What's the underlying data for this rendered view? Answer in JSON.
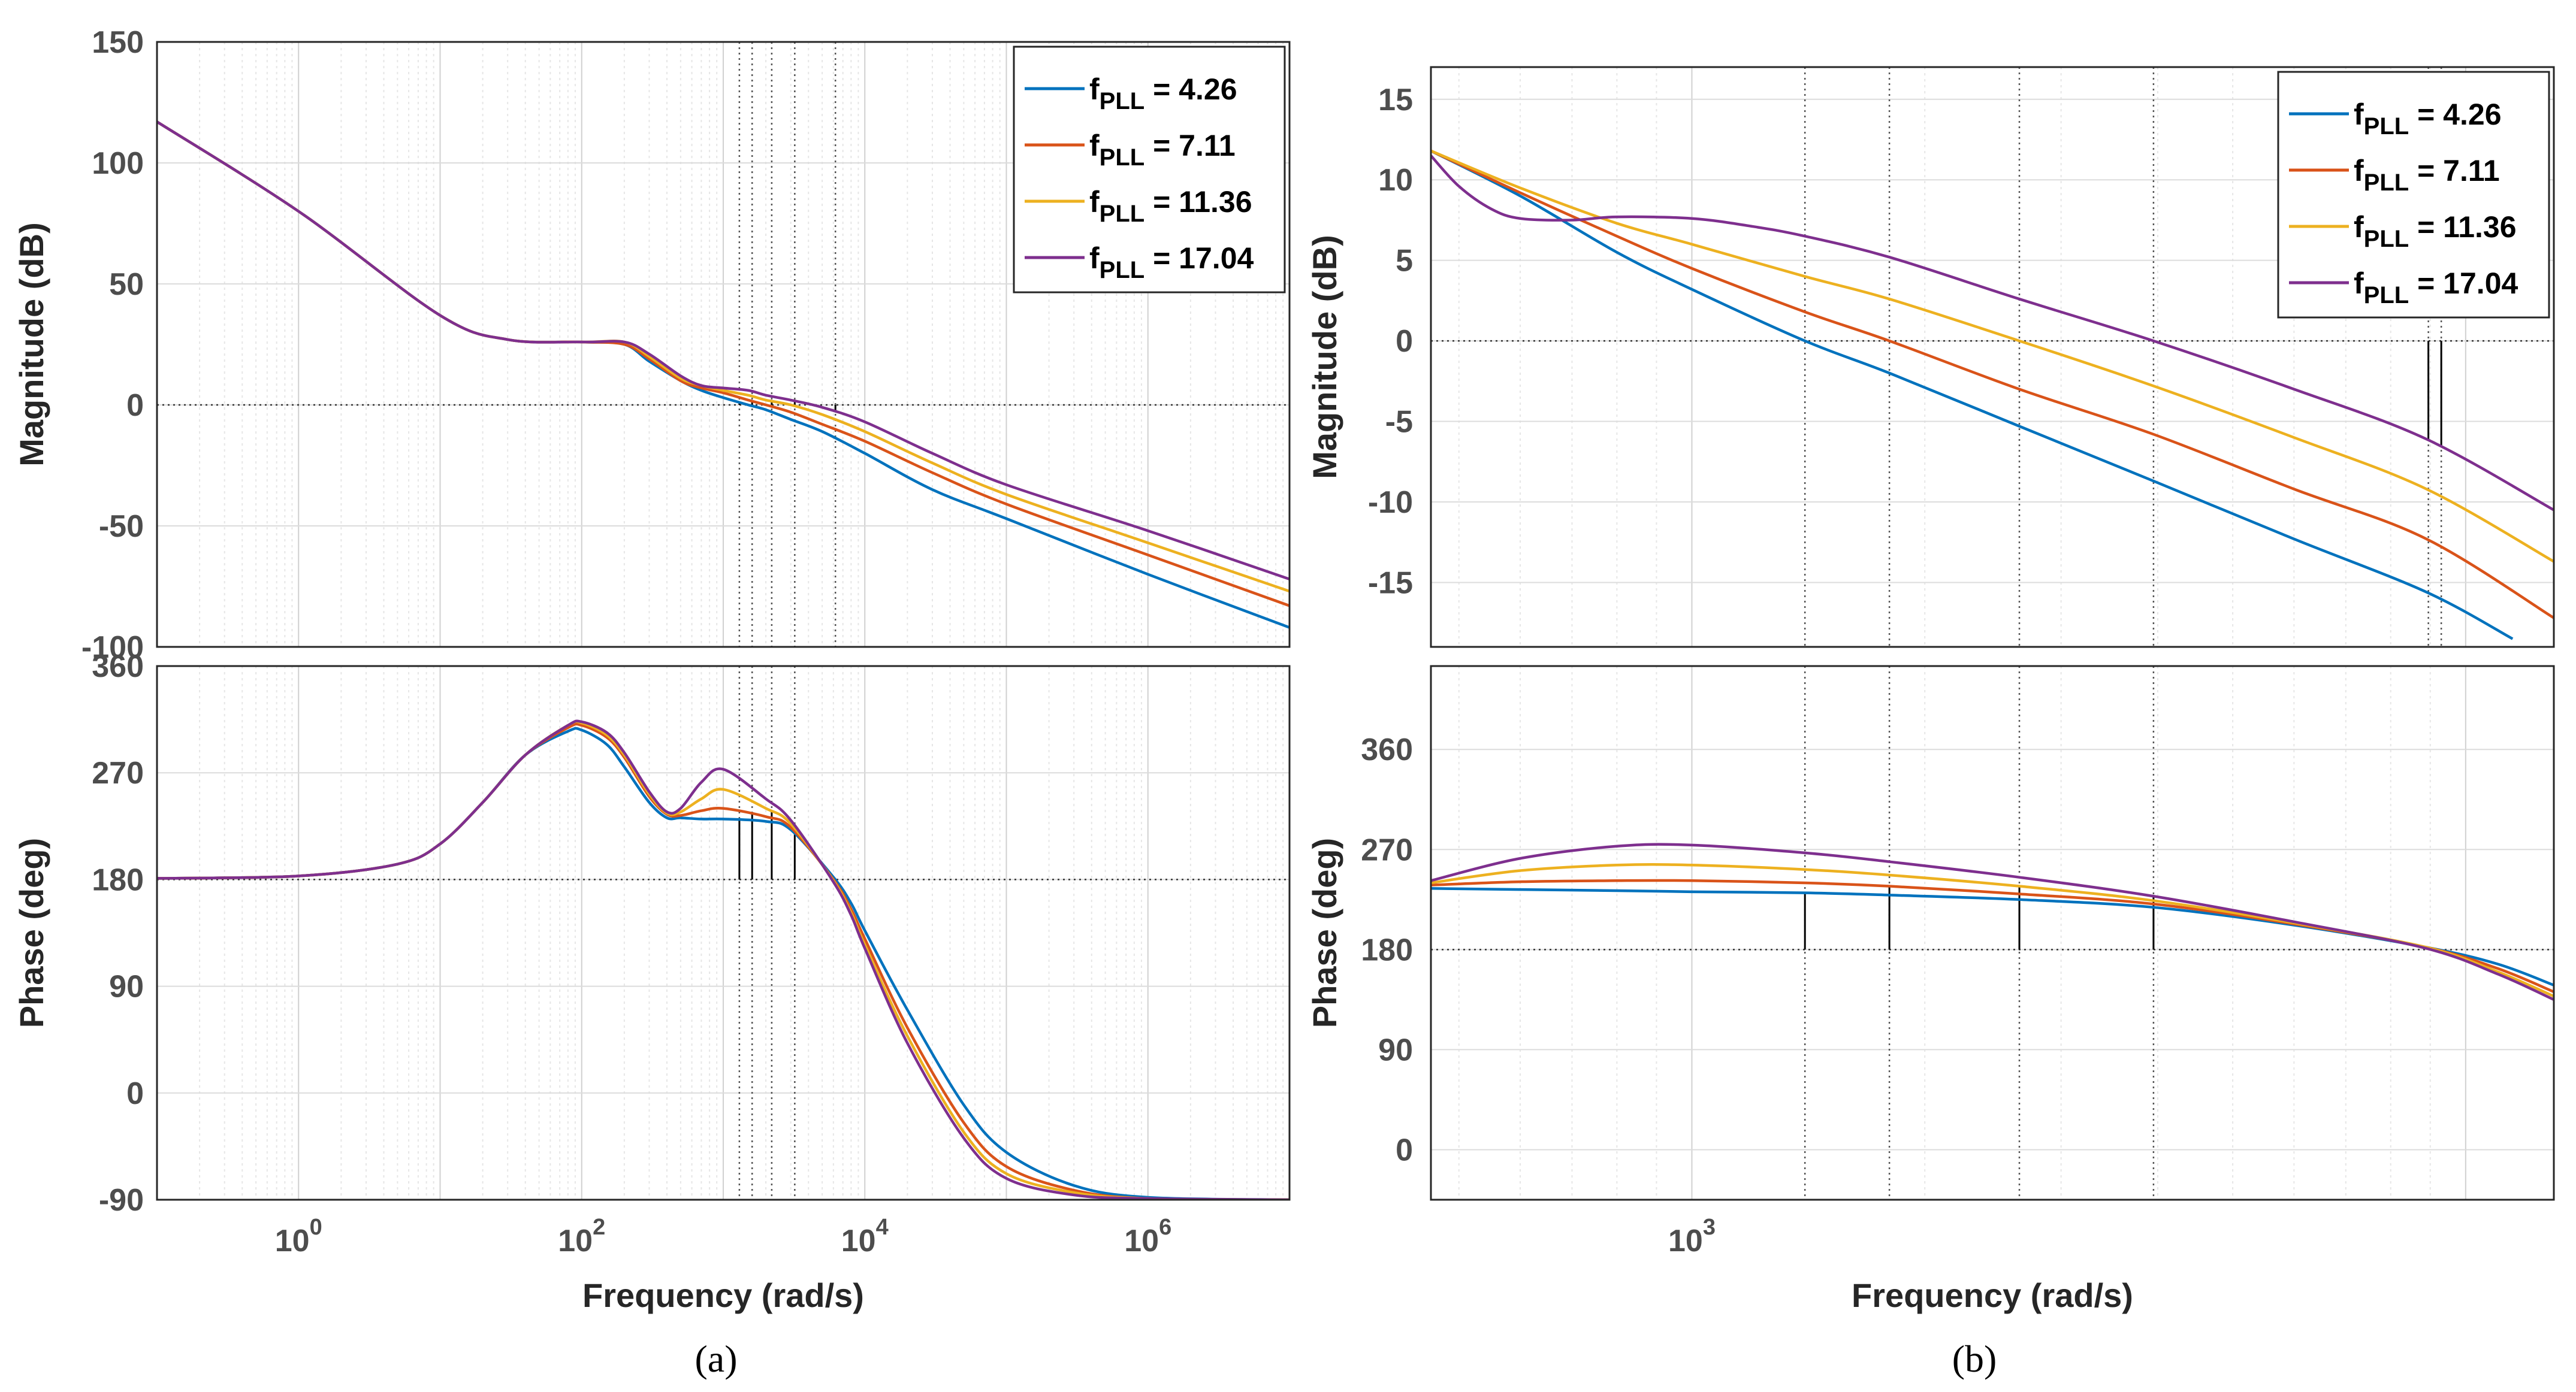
{
  "colors": {
    "series": [
      "#0072BD",
      "#D95319",
      "#EDB120",
      "#7E2F8E"
    ],
    "grid": "#dcdcdc",
    "axis": "#262626",
    "marker": "#000000"
  },
  "legend": {
    "prefix": "f",
    "subscript": "PLL",
    "equals": "=",
    "values": [
      "4.26",
      "7.11",
      "11.36",
      "17.04"
    ]
  },
  "chart_data": [
    {
      "id": "a-magnitude",
      "type": "line",
      "xscale": "log",
      "xlim": [
        0.1,
        10000000
      ],
      "ylim": [
        -100,
        150
      ],
      "yticks": [
        "150",
        "100",
        "50",
        "0",
        "-50",
        "-100"
      ],
      "ylabel": "Magnitude (dB)",
      "reference_line": 0,
      "crossover_x": [
        1300,
        1600,
        2200,
        3200,
        6200
      ],
      "series": [
        {
          "name": "fPLL = 4.26",
          "x": [
            0.1,
            1,
            10,
            30,
            100,
            200,
            300,
            500,
            700,
            1000,
            1500,
            2000,
            3000,
            5000,
            10000,
            30000,
            100000,
            1000000,
            10000000
          ],
          "y": [
            117,
            80,
            37,
            27,
            26,
            25,
            18,
            10,
            6,
            3,
            0,
            -2,
            -6,
            -11,
            -20,
            -35,
            -47,
            -70,
            -92
          ]
        },
        {
          "name": "fPLL = 7.11",
          "x": [
            0.1,
            1,
            10,
            30,
            100,
            200,
            300,
            500,
            700,
            1000,
            1500,
            2000,
            3000,
            5000,
            10000,
            30000,
            100000,
            1000000,
            10000000
          ],
          "y": [
            117,
            80,
            37,
            27,
            26,
            25,
            19,
            10,
            7,
            5,
            2,
            0,
            -3,
            -8,
            -15,
            -28,
            -41,
            -62,
            -83
          ]
        },
        {
          "name": "fPLL = 11.36",
          "x": [
            0.1,
            1,
            10,
            30,
            100,
            200,
            300,
            500,
            700,
            1000,
            1500,
            2000,
            3000,
            5000,
            10000,
            30000,
            100000,
            1000000,
            10000000
          ],
          "y": [
            117,
            80,
            37,
            27,
            26,
            26,
            20,
            11,
            8,
            6,
            4,
            2,
            0,
            -4,
            -11,
            -24,
            -37,
            -57,
            -77
          ]
        },
        {
          "name": "fPLL = 17.04",
          "x": [
            0.1,
            1,
            10,
            30,
            100,
            200,
            300,
            500,
            700,
            1000,
            1500,
            2000,
            3000,
            5000,
            10000,
            30000,
            100000,
            1000000,
            10000000
          ],
          "y": [
            117,
            80,
            37,
            27,
            26,
            26,
            21,
            12,
            8,
            7,
            6,
            4,
            2,
            -1,
            -7,
            -20,
            -33,
            -52,
            -72
          ]
        }
      ]
    },
    {
      "id": "a-phase",
      "type": "line",
      "xscale": "log",
      "xlim": [
        0.1,
        10000000
      ],
      "ylim": [
        -90,
        360
      ],
      "yticks": [
        "360",
        "270",
        "180",
        "90",
        "0",
        "-90"
      ],
      "xticks": [
        {
          "base": "10",
          "exp": "0",
          "value": 1
        },
        {
          "base": "10",
          "exp": "2",
          "value": 100
        },
        {
          "base": "10",
          "exp": "4",
          "value": 10000
        },
        {
          "base": "10",
          "exp": "6",
          "value": 1000000
        }
      ],
      "ylabel": "Phase (deg)",
      "xlabel": "Frequency  (rad/s)",
      "reference_line": 180,
      "crossover_x": [
        1300,
        1600,
        2200,
        3200
      ],
      "series": [
        {
          "name": "fPLL = 4.26",
          "x": [
            0.1,
            1,
            5,
            10,
            20,
            40,
            80,
            100,
            150,
            200,
            300,
            400,
            500,
            700,
            1000,
            2000,
            3000,
            6000,
            8000,
            10000,
            20000,
            50000,
            100000,
            300000,
            1000000,
            10000000
          ],
          "y": [
            181,
            183,
            193,
            210,
            245,
            285,
            305,
            306,
            294,
            275,
            245,
            232,
            232,
            231,
            231,
            229,
            222,
            182,
            160,
            137,
            70,
            -10,
            -50,
            -78,
            -88,
            -90
          ]
        },
        {
          "name": "fPLL = 7.11",
          "x": [
            0.1,
            1,
            5,
            10,
            20,
            40,
            80,
            100,
            150,
            200,
            300,
            400,
            500,
            700,
            1000,
            2000,
            3000,
            6000,
            8000,
            10000,
            20000,
            50000,
            100000,
            300000,
            1000000,
            10000000
          ],
          "y": [
            181,
            183,
            193,
            210,
            245,
            285,
            308,
            310,
            300,
            283,
            250,
            235,
            234,
            238,
            240,
            233,
            224,
            180,
            155,
            130,
            55,
            -25,
            -62,
            -82,
            -89,
            -90
          ]
        },
        {
          "name": "fPLL = 11.36",
          "x": [
            0.1,
            1,
            5,
            10,
            20,
            40,
            80,
            100,
            150,
            200,
            300,
            400,
            500,
            700,
            1000,
            2000,
            3000,
            6000,
            8000,
            10000,
            20000,
            50000,
            100000,
            300000,
            1000000,
            10000000
          ],
          "y": [
            181,
            183,
            193,
            210,
            245,
            285,
            310,
            312,
            302,
            285,
            252,
            236,
            237,
            248,
            256,
            240,
            227,
            179,
            152,
            125,
            48,
            -33,
            -68,
            -84,
            -89,
            -90
          ]
        },
        {
          "name": "fPLL = 17.04",
          "x": [
            0.1,
            1,
            5,
            10,
            20,
            40,
            80,
            100,
            150,
            200,
            300,
            400,
            500,
            700,
            1000,
            2000,
            3000,
            6000,
            8000,
            10000,
            20000,
            50000,
            100000,
            300000,
            1000000,
            10000000
          ],
          "y": [
            181,
            183,
            193,
            210,
            245,
            285,
            310,
            313,
            304,
            287,
            254,
            237,
            240,
            262,
            273,
            248,
            230,
            178,
            150,
            122,
            42,
            -38,
            -72,
            -86,
            -89,
            -90
          ]
        }
      ]
    },
    {
      "id": "b-magnitude",
      "type": "line",
      "xscale": "log",
      "xlim": [
        460,
        13000
      ],
      "ylim": [
        -19,
        17
      ],
      "yticks": [
        "15",
        "10",
        "5",
        "0",
        "-5",
        "-10",
        "-15"
      ],
      "ylabel": "Magnitude (dB)",
      "reference_line": 0,
      "crossover_x": [
        1400,
        1800,
        2650,
        3950,
        8950,
        9300
      ],
      "series": [
        {
          "name": "fPLL = 4.26",
          "x": [
            460,
            600,
            800,
            1000,
            1400,
            1800,
            2650,
            3950,
            6000,
            8900,
            11500
          ],
          "y": [
            11.8,
            9,
            5.5,
            3.2,
            0,
            -2,
            -5.3,
            -8.7,
            -12.3,
            -15.6,
            -18.5
          ]
        },
        {
          "name": "fPLL = 7.11",
          "x": [
            460,
            600,
            800,
            1000,
            1400,
            1800,
            2650,
            3950,
            6000,
            8900,
            13000
          ],
          "y": [
            11.8,
            9.2,
            6.5,
            4.5,
            1.8,
            0,
            -3,
            -5.8,
            -9.2,
            -12.3,
            -17.2
          ]
        },
        {
          "name": "fPLL = 11.36",
          "x": [
            460,
            600,
            800,
            1000,
            1400,
            1800,
            2650,
            3950,
            6000,
            8900,
            13000
          ],
          "y": [
            11.8,
            9.5,
            7.3,
            6,
            4,
            2.6,
            0,
            -2.8,
            -6,
            -9.2,
            -13.7
          ]
        },
        {
          "name": "fPLL = 17.04",
          "x": [
            460,
            500,
            550,
            600,
            700,
            800,
            1000,
            1200,
            1400,
            1800,
            2650,
            3950,
            6000,
            8900,
            13000
          ],
          "y": [
            11.5,
            9.6,
            8.2,
            7.6,
            7.5,
            7.7,
            7.6,
            7.1,
            6.5,
            5.2,
            2.6,
            0,
            -3,
            -6.1,
            -10.5
          ]
        }
      ]
    },
    {
      "id": "b-phase",
      "type": "line",
      "xscale": "log",
      "xlim": [
        460,
        13000
      ],
      "ylim": [
        -45,
        435
      ],
      "yticks": [
        "360",
        "270",
        "180",
        "90",
        "0"
      ],
      "xticks": [
        {
          "base": "10",
          "exp": "3",
          "value": 1000
        }
      ],
      "ylabel": "Phase (deg)",
      "xlabel": "Frequency  (rad/s)",
      "reference_line": 180,
      "crossover_x": [
        1400,
        1800,
        2650,
        3950
      ],
      "series": [
        {
          "name": "fPLL = 4.26",
          "x": [
            460,
            600,
            800,
            1000,
            1400,
            1800,
            2650,
            3950,
            6000,
            8900,
            11000,
            13000
          ],
          "y": [
            235,
            234,
            233,
            232,
            231,
            229,
            225,
            218,
            202,
            182,
            167,
            148
          ]
        },
        {
          "name": "fPLL = 7.11",
          "x": [
            460,
            600,
            800,
            1000,
            1400,
            1800,
            2650,
            3950,
            6000,
            8900,
            11000,
            13000
          ],
          "y": [
            238,
            241,
            242,
            242,
            240,
            237,
            230,
            221,
            203,
            182,
            163,
            142
          ]
        },
        {
          "name": "fPLL = 11.36",
          "x": [
            460,
            600,
            800,
            1000,
            1400,
            1800,
            2650,
            3950,
            6000,
            8900,
            11000,
            13000
          ],
          "y": [
            240,
            251,
            256,
            256,
            252,
            247,
            237,
            224,
            204,
            182,
            160,
            138
          ]
        },
        {
          "name": "fPLL = 17.04",
          "x": [
            460,
            600,
            800,
            1000,
            1400,
            1800,
            2650,
            3950,
            6000,
            8900,
            11000,
            13000
          ],
          "y": [
            242,
            262,
            273,
            274,
            267,
            259,
            245,
            228,
            205,
            181,
            158,
            135
          ]
        }
      ]
    }
  ],
  "captions": {
    "a": "(a)",
    "b": "(b)"
  }
}
